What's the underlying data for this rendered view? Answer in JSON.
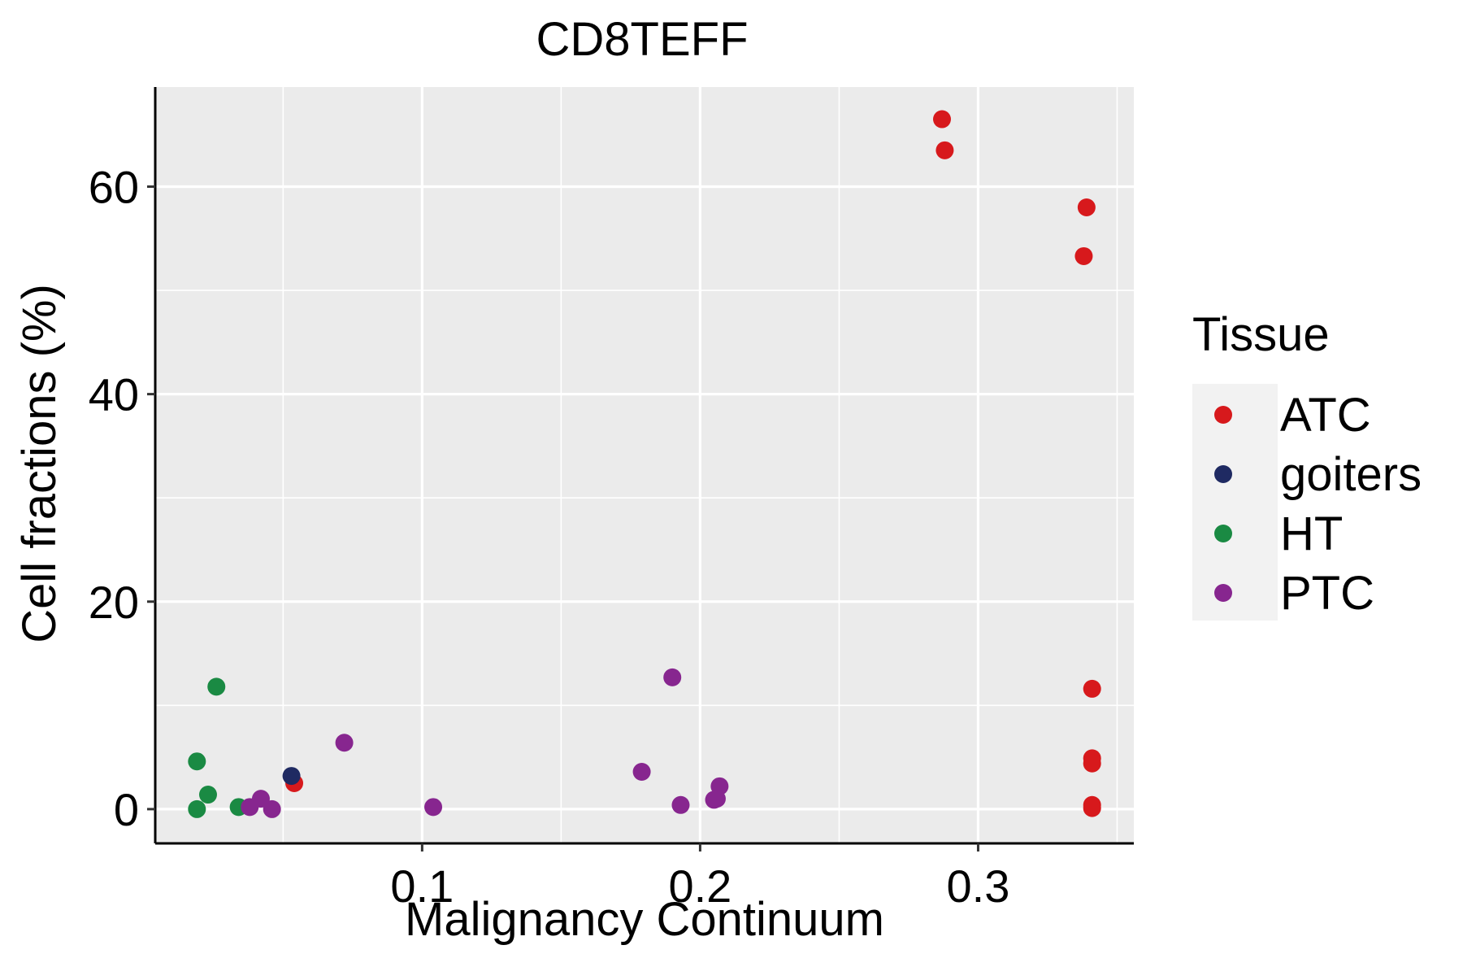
{
  "chart_data": {
    "type": "scatter",
    "title": "CD8TEFF",
    "xlabel": "Malignancy Continuum",
    "ylabel": "Cell fractions (%)",
    "xlim": [
      0.004,
      0.356
    ],
    "ylim": [
      -3.3,
      69.6
    ],
    "x_ticks": [
      0.1,
      0.2,
      0.3
    ],
    "x_tick_labels": [
      "0.1",
      "0.2",
      "0.3"
    ],
    "y_ticks": [
      0,
      20,
      40,
      60
    ],
    "y_tick_labels": [
      "0",
      "20",
      "40",
      "60"
    ],
    "grid": true,
    "legend": {
      "title": "Tissue",
      "position": "right",
      "entries": [
        "ATC",
        "goiters",
        "HT",
        "PTC"
      ]
    },
    "colors": {
      "ATC": "#d7191c",
      "goiters": "#1f2a62",
      "HT": "#1a8a43",
      "PTC": "#87268f",
      "panel": "#ebebeb",
      "grid": "#ffffff"
    },
    "series": [
      {
        "name": "ATC",
        "points": [
          {
            "x": 0.287,
            "y": 66.5
          },
          {
            "x": 0.288,
            "y": 63.5
          },
          {
            "x": 0.339,
            "y": 58.0
          },
          {
            "x": 0.338,
            "y": 53.3
          },
          {
            "x": 0.341,
            "y": 11.6
          },
          {
            "x": 0.341,
            "y": 4.9
          },
          {
            "x": 0.341,
            "y": 4.4
          },
          {
            "x": 0.341,
            "y": 0.4
          },
          {
            "x": 0.341,
            "y": 0.1
          },
          {
            "x": 0.054,
            "y": 2.5
          }
        ]
      },
      {
        "name": "goiters",
        "points": [
          {
            "x": 0.053,
            "y": 3.2
          }
        ]
      },
      {
        "name": "HT",
        "points": [
          {
            "x": 0.026,
            "y": 11.8
          },
          {
            "x": 0.019,
            "y": 4.6
          },
          {
            "x": 0.023,
            "y": 1.4
          },
          {
            "x": 0.019,
            "y": 0.0
          },
          {
            "x": 0.034,
            "y": 0.2
          }
        ]
      },
      {
        "name": "PTC",
        "points": [
          {
            "x": 0.19,
            "y": 12.7
          },
          {
            "x": 0.072,
            "y": 6.4
          },
          {
            "x": 0.179,
            "y": 3.6
          },
          {
            "x": 0.207,
            "y": 2.2
          },
          {
            "x": 0.206,
            "y": 1.0
          },
          {
            "x": 0.205,
            "y": 0.9
          },
          {
            "x": 0.193,
            "y": 0.4
          },
          {
            "x": 0.104,
            "y": 0.2
          },
          {
            "x": 0.042,
            "y": 1.0
          },
          {
            "x": 0.038,
            "y": 0.2
          },
          {
            "x": 0.046,
            "y": 0.0
          }
        ]
      }
    ]
  }
}
